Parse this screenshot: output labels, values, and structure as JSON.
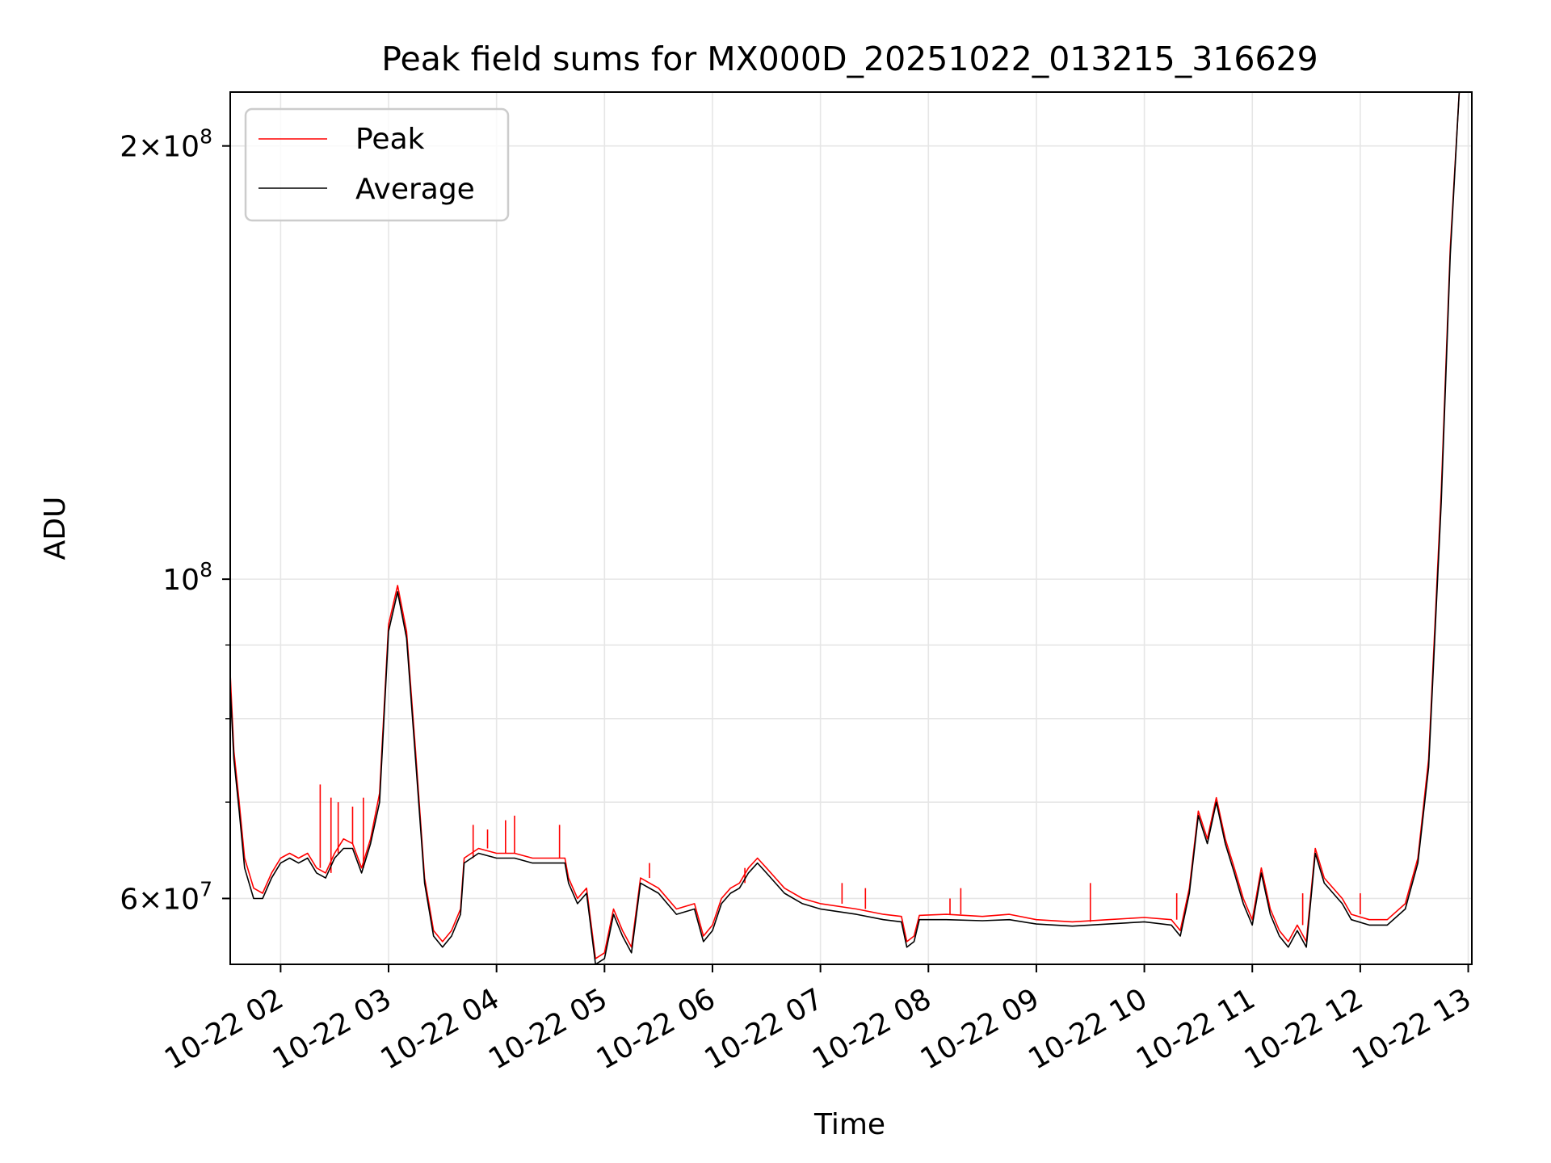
{
  "chart_data": {
    "type": "line",
    "title": "Peak field sums for MX000D_20251022_013215_316629",
    "xlabel": "Time",
    "ylabel": "ADU",
    "x_ticks": [
      "10-22 02",
      "10-22 03",
      "10-22 04",
      "10-22 05",
      "10-22 06",
      "10-22 07",
      "10-22 08",
      "10-22 09",
      "10-22 10",
      "10-22 11",
      "10-22 12",
      "10-22 13"
    ],
    "y_ticks": [
      {
        "value": 60000000,
        "mantissa": "6",
        "exponent": "7"
      },
      {
        "value": 100000000,
        "mantissa": "",
        "exponent": "8"
      },
      {
        "value": 200000000,
        "mantissa": "2",
        "exponent": "8"
      }
    ],
    "y_scale": "log",
    "xlim": [
      "2025-10-22 01:32",
      "2025-10-22 13:02"
    ],
    "ylim": [
      54000000,
      218000000
    ],
    "grid": true,
    "legend_position": "upper left",
    "series": [
      {
        "name": "Peak",
        "color": "#ff0000",
        "points": [
          [
            "01:32",
            86000000
          ],
          [
            "01:34",
            76000000
          ],
          [
            "01:37",
            70000000
          ],
          [
            "01:40",
            64000000
          ],
          [
            "01:45",
            61000000
          ],
          [
            "01:50",
            60500000
          ],
          [
            "01:55",
            62500000
          ],
          [
            "02:00",
            64000000
          ],
          [
            "02:05",
            64500000
          ],
          [
            "02:10",
            64000000
          ],
          [
            "02:15",
            64500000
          ],
          [
            "02:20",
            63000000
          ],
          [
            "02:25",
            62500000
          ],
          [
            "02:30",
            64500000
          ],
          [
            "02:35",
            66000000
          ],
          [
            "02:40",
            65500000
          ],
          [
            "02:45",
            63000000
          ],
          [
            "02:50",
            66000000
          ],
          [
            "02:55",
            71000000
          ],
          [
            "03:00",
            93000000
          ],
          [
            "03:05",
            99000000
          ],
          [
            "03:10",
            92000000
          ],
          [
            "03:15",
            76000000
          ],
          [
            "03:20",
            62000000
          ],
          [
            "03:25",
            57000000
          ],
          [
            "03:30",
            56000000
          ],
          [
            "03:35",
            57000000
          ],
          [
            "03:40",
            59000000
          ],
          [
            "03:42",
            64000000
          ],
          [
            "03:50",
            65000000
          ],
          [
            "04:00",
            64500000
          ],
          [
            "04:10",
            64500000
          ],
          [
            "04:20",
            64000000
          ],
          [
            "04:30",
            64000000
          ],
          [
            "04:38",
            64000000
          ],
          [
            "04:40",
            62000000
          ],
          [
            "04:45",
            60000000
          ],
          [
            "04:50",
            61000000
          ],
          [
            "04:55",
            54500000
          ],
          [
            "05:00",
            55000000
          ],
          [
            "05:05",
            59000000
          ],
          [
            "05:10",
            57000000
          ],
          [
            "05:15",
            55500000
          ],
          [
            "05:20",
            62000000
          ],
          [
            "05:30",
            61000000
          ],
          [
            "05:40",
            59000000
          ],
          [
            "05:50",
            59500000
          ],
          [
            "05:55",
            56500000
          ],
          [
            "06:00",
            57500000
          ],
          [
            "06:05",
            60000000
          ],
          [
            "06:10",
            61000000
          ],
          [
            "06:15",
            61500000
          ],
          [
            "06:20",
            63000000
          ],
          [
            "06:25",
            64000000
          ],
          [
            "06:30",
            63000000
          ],
          [
            "06:35",
            62000000
          ],
          [
            "06:40",
            61000000
          ],
          [
            "06:50",
            60000000
          ],
          [
            "07:00",
            59500000
          ],
          [
            "07:20",
            59000000
          ],
          [
            "07:35",
            58500000
          ],
          [
            "07:45",
            58300000
          ],
          [
            "07:48",
            56000000
          ],
          [
            "07:52",
            56500000
          ],
          [
            "07:55",
            58400000
          ],
          [
            "08:10",
            58500000
          ],
          [
            "08:30",
            58300000
          ],
          [
            "08:45",
            58500000
          ],
          [
            "09:00",
            58000000
          ],
          [
            "09:20",
            57800000
          ],
          [
            "09:40",
            58000000
          ],
          [
            "10:00",
            58200000
          ],
          [
            "10:15",
            58000000
          ],
          [
            "10:20",
            57000000
          ],
          [
            "10:25",
            61000000
          ],
          [
            "10:30",
            69000000
          ],
          [
            "10:35",
            66000000
          ],
          [
            "10:40",
            70500000
          ],
          [
            "10:45",
            66000000
          ],
          [
            "10:50",
            63000000
          ],
          [
            "10:55",
            60000000
          ],
          [
            "11:00",
            58000000
          ],
          [
            "11:05",
            63000000
          ],
          [
            "11:10",
            59000000
          ],
          [
            "11:15",
            57000000
          ],
          [
            "11:20",
            56000000
          ],
          [
            "11:25",
            57500000
          ],
          [
            "11:30",
            56000000
          ],
          [
            "11:35",
            65000000
          ],
          [
            "11:40",
            62000000
          ],
          [
            "11:50",
            60000000
          ],
          [
            "11:55",
            58500000
          ],
          [
            "12:05",
            58000000
          ],
          [
            "12:15",
            58000000
          ],
          [
            "12:25",
            59500000
          ],
          [
            "12:32",
            64000000
          ],
          [
            "12:38",
            75000000
          ],
          [
            "12:45",
            115000000
          ],
          [
            "12:50",
            170000000
          ],
          [
            "12:55",
            218000000
          ]
        ]
      },
      {
        "name": "Average",
        "color": "#000000",
        "points": [
          [
            "01:32",
            84000000
          ],
          [
            "01:34",
            75000000
          ],
          [
            "01:37",
            69000000
          ],
          [
            "01:40",
            63000000
          ],
          [
            "01:45",
            60000000
          ],
          [
            "01:50",
            60000000
          ],
          [
            "01:55",
            62000000
          ],
          [
            "02:00",
            63500000
          ],
          [
            "02:05",
            64000000
          ],
          [
            "02:10",
            63500000
          ],
          [
            "02:15",
            64000000
          ],
          [
            "02:20",
            62500000
          ],
          [
            "02:25",
            62000000
          ],
          [
            "02:30",
            64000000
          ],
          [
            "02:35",
            65000000
          ],
          [
            "02:40",
            65000000
          ],
          [
            "02:45",
            62500000
          ],
          [
            "02:50",
            65500000
          ],
          [
            "02:55",
            70000000
          ],
          [
            "03:00",
            92000000
          ],
          [
            "03:05",
            98000000
          ],
          [
            "03:10",
            91000000
          ],
          [
            "03:15",
            75000000
          ],
          [
            "03:20",
            61500000
          ],
          [
            "03:25",
            56500000
          ],
          [
            "03:30",
            55500000
          ],
          [
            "03:35",
            56500000
          ],
          [
            "03:40",
            58500000
          ],
          [
            "03:42",
            63500000
          ],
          [
            "03:50",
            64500000
          ],
          [
            "04:00",
            64000000
          ],
          [
            "04:10",
            64000000
          ],
          [
            "04:20",
            63500000
          ],
          [
            "04:30",
            63500000
          ],
          [
            "04:38",
            63500000
          ],
          [
            "04:40",
            61500000
          ],
          [
            "04:45",
            59500000
          ],
          [
            "04:50",
            60500000
          ],
          [
            "04:55",
            54000000
          ],
          [
            "05:00",
            54500000
          ],
          [
            "05:05",
            58500000
          ],
          [
            "05:10",
            56500000
          ],
          [
            "05:15",
            55000000
          ],
          [
            "05:20",
            61500000
          ],
          [
            "05:30",
            60500000
          ],
          [
            "05:40",
            58500000
          ],
          [
            "05:50",
            59000000
          ],
          [
            "05:55",
            56000000
          ],
          [
            "06:00",
            57000000
          ],
          [
            "06:05",
            59500000
          ],
          [
            "06:10",
            60500000
          ],
          [
            "06:15",
            61000000
          ],
          [
            "06:20",
            62500000
          ],
          [
            "06:25",
            63500000
          ],
          [
            "06:30",
            62500000
          ],
          [
            "06:35",
            61500000
          ],
          [
            "06:40",
            60500000
          ],
          [
            "06:50",
            59500000
          ],
          [
            "07:00",
            59000000
          ],
          [
            "07:20",
            58500000
          ],
          [
            "07:35",
            58000000
          ],
          [
            "07:45",
            57800000
          ],
          [
            "07:48",
            55500000
          ],
          [
            "07:52",
            56000000
          ],
          [
            "07:55",
            58000000
          ],
          [
            "08:10",
            58000000
          ],
          [
            "08:30",
            57900000
          ],
          [
            "08:45",
            58000000
          ],
          [
            "09:00",
            57600000
          ],
          [
            "09:20",
            57400000
          ],
          [
            "09:40",
            57600000
          ],
          [
            "10:00",
            57800000
          ],
          [
            "10:15",
            57500000
          ],
          [
            "10:20",
            56500000
          ],
          [
            "10:25",
            60500000
          ],
          [
            "10:30",
            68500000
          ],
          [
            "10:35",
            65500000
          ],
          [
            "10:40",
            70000000
          ],
          [
            "10:45",
            65500000
          ],
          [
            "10:50",
            62500000
          ],
          [
            "10:55",
            59500000
          ],
          [
            "11:00",
            57500000
          ],
          [
            "11:05",
            62500000
          ],
          [
            "11:10",
            58500000
          ],
          [
            "11:15",
            56500000
          ],
          [
            "11:20",
            55500000
          ],
          [
            "11:25",
            57000000
          ],
          [
            "11:30",
            55500000
          ],
          [
            "11:35",
            64500000
          ],
          [
            "11:40",
            61500000
          ],
          [
            "11:50",
            59500000
          ],
          [
            "11:55",
            58000000
          ],
          [
            "12:05",
            57500000
          ],
          [
            "12:15",
            57500000
          ],
          [
            "12:25",
            59000000
          ],
          [
            "12:32",
            63500000
          ],
          [
            "12:38",
            74000000
          ],
          [
            "12:45",
            113000000
          ],
          [
            "12:50",
            168000000
          ],
          [
            "12:55",
            218000000
          ]
        ]
      }
    ],
    "peak_spikes": [
      [
        "02:22",
        72000000
      ],
      [
        "02:28",
        70500000
      ],
      [
        "02:32",
        70000000
      ],
      [
        "02:40",
        69500000
      ],
      [
        "02:46",
        70500000
      ],
      [
        "03:47",
        67500000
      ],
      [
        "03:55",
        67000000
      ],
      [
        "04:05",
        68000000
      ],
      [
        "04:10",
        68500000
      ],
      [
        "04:35",
        67500000
      ],
      [
        "05:25",
        63500000
      ],
      [
        "06:18",
        63000000
      ],
      [
        "07:12",
        61500000
      ],
      [
        "07:25",
        61000000
      ],
      [
        "08:12",
        60000000
      ],
      [
        "08:18",
        61000000
      ],
      [
        "09:30",
        61500000
      ],
      [
        "10:18",
        60500000
      ],
      [
        "11:28",
        60500000
      ],
      [
        "12:00",
        60500000
      ]
    ]
  }
}
